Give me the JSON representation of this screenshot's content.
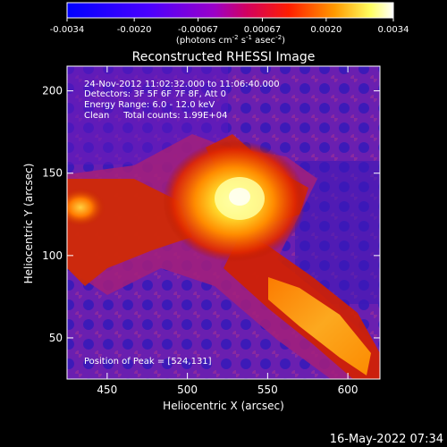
{
  "colorbar": {
    "ticks": [
      "-0.0034",
      "-0.0020",
      "-0.00067",
      "0.00067",
      "0.0020",
      "0.0034"
    ],
    "units_pre": "(photons cm",
    "units_exp1": "-2",
    "units_mid1": " s",
    "units_exp2": "-1",
    "units_mid2": " asec",
    "units_exp3": "-2",
    "units_post": ")",
    "range": [
      -0.0034,
      0.0034
    ]
  },
  "annotations": {
    "time_range": "24-Nov-2012 11:02:32.000 to 11:06:40.000",
    "detectors": "Detectors: 3F 5F 6F 7F 8F, Att 0",
    "energy": "Energy Range: 6.0 - 12.0 keV",
    "clean": "Clean     Total counts: 1.99E+04",
    "peak": "Position of Peak = [524,131]"
  },
  "footer": {
    "timestamp": "16-May-2022 07:34"
  },
  "chart_data": {
    "type": "heatmap",
    "title": "Reconstructed RHESSI Image",
    "xlabel": "Heliocentric X (arcsec)",
    "ylabel": "Heliocentric Y (arcsec)",
    "xlim": [
      425,
      620
    ],
    "ylim": [
      25,
      215
    ],
    "xticks": [
      "450",
      "500",
      "550",
      "600"
    ],
    "yticks": [
      "50",
      "100",
      "150",
      "200"
    ],
    "xtick_values": [
      450,
      500,
      550,
      600
    ],
    "ytick_values": [
      50,
      100,
      150,
      200
    ],
    "peak": [
      524,
      131
    ],
    "colormap": "red-temperature"
  }
}
